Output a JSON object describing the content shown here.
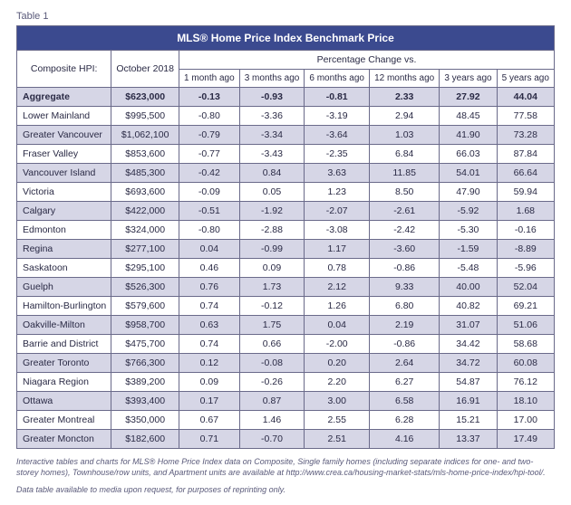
{
  "label": "Table 1",
  "title": "MLS® Home Price Index Benchmark Price",
  "header": {
    "composite": "Composite HPI:",
    "period": "October 2018",
    "pct_vs": "Percentage Change vs.",
    "cols": [
      "1 month ago",
      "3 months ago",
      "6 months ago",
      "12 months ago",
      "3 years ago",
      "5 years ago"
    ]
  },
  "rows": [
    {
      "region": "Aggregate",
      "price": "$623,000",
      "vals": [
        "-0.13",
        "-0.93",
        "-0.81",
        "2.33",
        "27.92",
        "44.04"
      ],
      "agg": true
    },
    {
      "region": "Lower Mainland",
      "price": "$995,500",
      "vals": [
        "-0.80",
        "-3.36",
        "-3.19",
        "2.94",
        "48.45",
        "77.58"
      ]
    },
    {
      "region": "Greater Vancouver",
      "price": "$1,062,100",
      "vals": [
        "-0.79",
        "-3.34",
        "-3.64",
        "1.03",
        "41.90",
        "73.28"
      ]
    },
    {
      "region": "Fraser Valley",
      "price": "$853,600",
      "vals": [
        "-0.77",
        "-3.43",
        "-2.35",
        "6.84",
        "66.03",
        "87.84"
      ]
    },
    {
      "region": "Vancouver Island",
      "price": "$485,300",
      "vals": [
        "-0.42",
        "0.84",
        "3.63",
        "11.85",
        "54.01",
        "66.64"
      ]
    },
    {
      "region": "Victoria",
      "price": "$693,600",
      "vals": [
        "-0.09",
        "0.05",
        "1.23",
        "8.50",
        "47.90",
        "59.94"
      ]
    },
    {
      "region": "Calgary",
      "price": "$422,000",
      "vals": [
        "-0.51",
        "-1.92",
        "-2.07",
        "-2.61",
        "-5.92",
        "1.68"
      ]
    },
    {
      "region": "Edmonton",
      "price": "$324,000",
      "vals": [
        "-0.80",
        "-2.88",
        "-3.08",
        "-2.42",
        "-5.30",
        "-0.16"
      ]
    },
    {
      "region": "Regina",
      "price": "$277,100",
      "vals": [
        "0.04",
        "-0.99",
        "1.17",
        "-3.60",
        "-1.59",
        "-8.89"
      ]
    },
    {
      "region": "Saskatoon",
      "price": "$295,100",
      "vals": [
        "0.46",
        "0.09",
        "0.78",
        "-0.86",
        "-5.48",
        "-5.96"
      ]
    },
    {
      "region": "Guelph",
      "price": "$526,300",
      "vals": [
        "0.76",
        "1.73",
        "2.12",
        "9.33",
        "40.00",
        "52.04"
      ]
    },
    {
      "region": "Hamilton-Burlington",
      "price": "$579,600",
      "vals": [
        "0.74",
        "-0.12",
        "1.26",
        "6.80",
        "40.82",
        "69.21"
      ]
    },
    {
      "region": "Oakville-Milton",
      "price": "$958,700",
      "vals": [
        "0.63",
        "1.75",
        "0.04",
        "2.19",
        "31.07",
        "51.06"
      ]
    },
    {
      "region": "Barrie and District",
      "price": "$475,700",
      "vals": [
        "0.74",
        "0.66",
        "-2.00",
        "-0.86",
        "34.42",
        "58.68"
      ]
    },
    {
      "region": "Greater Toronto",
      "price": "$766,300",
      "vals": [
        "0.12",
        "-0.08",
        "0.20",
        "2.64",
        "34.72",
        "60.08"
      ]
    },
    {
      "region": "Niagara Region",
      "price": "$389,200",
      "vals": [
        "0.09",
        "-0.26",
        "2.20",
        "6.27",
        "54.87",
        "76.12"
      ]
    },
    {
      "region": "Ottawa",
      "price": "$393,400",
      "vals": [
        "0.17",
        "0.87",
        "3.00",
        "6.58",
        "16.91",
        "18.10"
      ]
    },
    {
      "region": "Greater Montreal",
      "price": "$350,000",
      "vals": [
        "0.67",
        "1.46",
        "2.55",
        "6.28",
        "15.21",
        "17.00"
      ]
    },
    {
      "region": "Greater Moncton",
      "price": "$182,600",
      "vals": [
        "0.71",
        "-0.70",
        "2.51",
        "4.16",
        "13.37",
        "17.49"
      ]
    }
  ],
  "footnote1": "Interactive tables and charts for MLS® Home Price Index data on Composite, Single family homes (including separate indices for one- and two-storey homes), Townhouse/row units, and Apartment units are available at http://www.crea.ca/housing-market-stats/mls-home-price-index/hpi-tool/.",
  "footnote2": "Data table available to media upon request, for purposes of reprinting only.",
  "colors": {
    "header_bg": "#3b4a8f",
    "alt_row": "#d6d6e6",
    "border": "#6a6a8a",
    "text": "#2a2a45",
    "muted": "#5a5a7a"
  }
}
